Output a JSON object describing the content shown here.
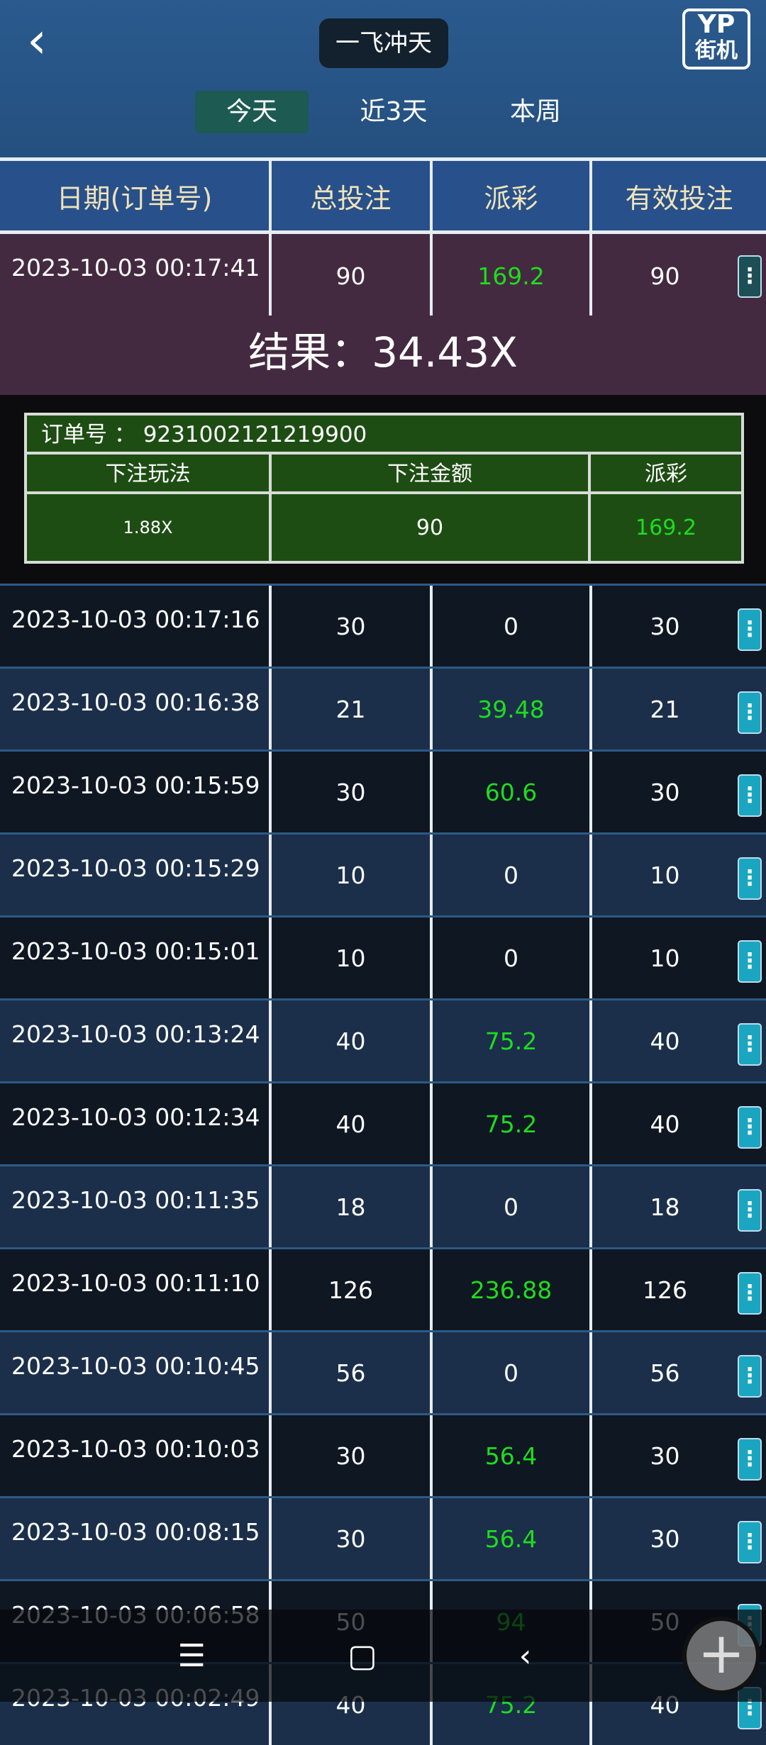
{
  "header": {
    "title": "一飞冲天",
    "logo_text": "YP",
    "logo_sub": "街机"
  },
  "tabs": [
    {
      "label": "今天",
      "active": true
    },
    {
      "label": "近3天"
    },
    {
      "label": "本周"
    }
  ],
  "columns": [
    "日期(订单号)",
    "总投注",
    "派彩",
    "有效投注"
  ],
  "expanded": {
    "date": "2023-10-03 00:17:41",
    "total": "90",
    "payout": "169.2",
    "valid": "90",
    "result": "结果：34.43X",
    "order_label": "订单号  ：  9231002121219900",
    "detail_headers": [
      "下注玩法",
      "下注金额",
      "派彩"
    ],
    "detail_values": [
      "1.88X",
      "90",
      "169.2"
    ]
  },
  "rows": [
    [
      "2023-10-03 00:17:16",
      "30",
      "0",
      "30"
    ],
    [
      "2023-10-03 00:16:38",
      "21",
      "39.48",
      "21"
    ],
    [
      "2023-10-03 00:15:59",
      "30",
      "60.6",
      "30"
    ],
    [
      "2023-10-03 00:15:29",
      "10",
      "0",
      "10"
    ],
    [
      "2023-10-03 00:15:01",
      "10",
      "0",
      "10"
    ],
    [
      "2023-10-03 00:13:24",
      "40",
      "75.2",
      "40"
    ],
    [
      "2023-10-03 00:12:34",
      "40",
      "75.2",
      "40"
    ],
    [
      "2023-10-03 00:11:35",
      "18",
      "0",
      "18"
    ],
    [
      "2023-10-03 00:11:10",
      "126",
      "236.88",
      "126"
    ],
    [
      "2023-10-03 00:10:45",
      "56",
      "0",
      "56"
    ],
    [
      "2023-10-03 00:10:03",
      "30",
      "56.4",
      "30"
    ],
    [
      "2023-10-03 00:08:15",
      "30",
      "56.4",
      "30"
    ],
    [
      "2023-10-03 00:06:58",
      "50",
      "94",
      "50"
    ],
    [
      "2023-10-03 00:02:49",
      "40",
      "75.2",
      "40"
    ]
  ],
  "colors": {
    "payout_positive": "#1fdc1f",
    "active_tab": "#1c5a52",
    "menu_button": "#1aa6c0"
  },
  "nav": {
    "menu_icon": "☰",
    "home_icon": "▢",
    "back_icon": "‹",
    "fab_icon": "+"
  }
}
